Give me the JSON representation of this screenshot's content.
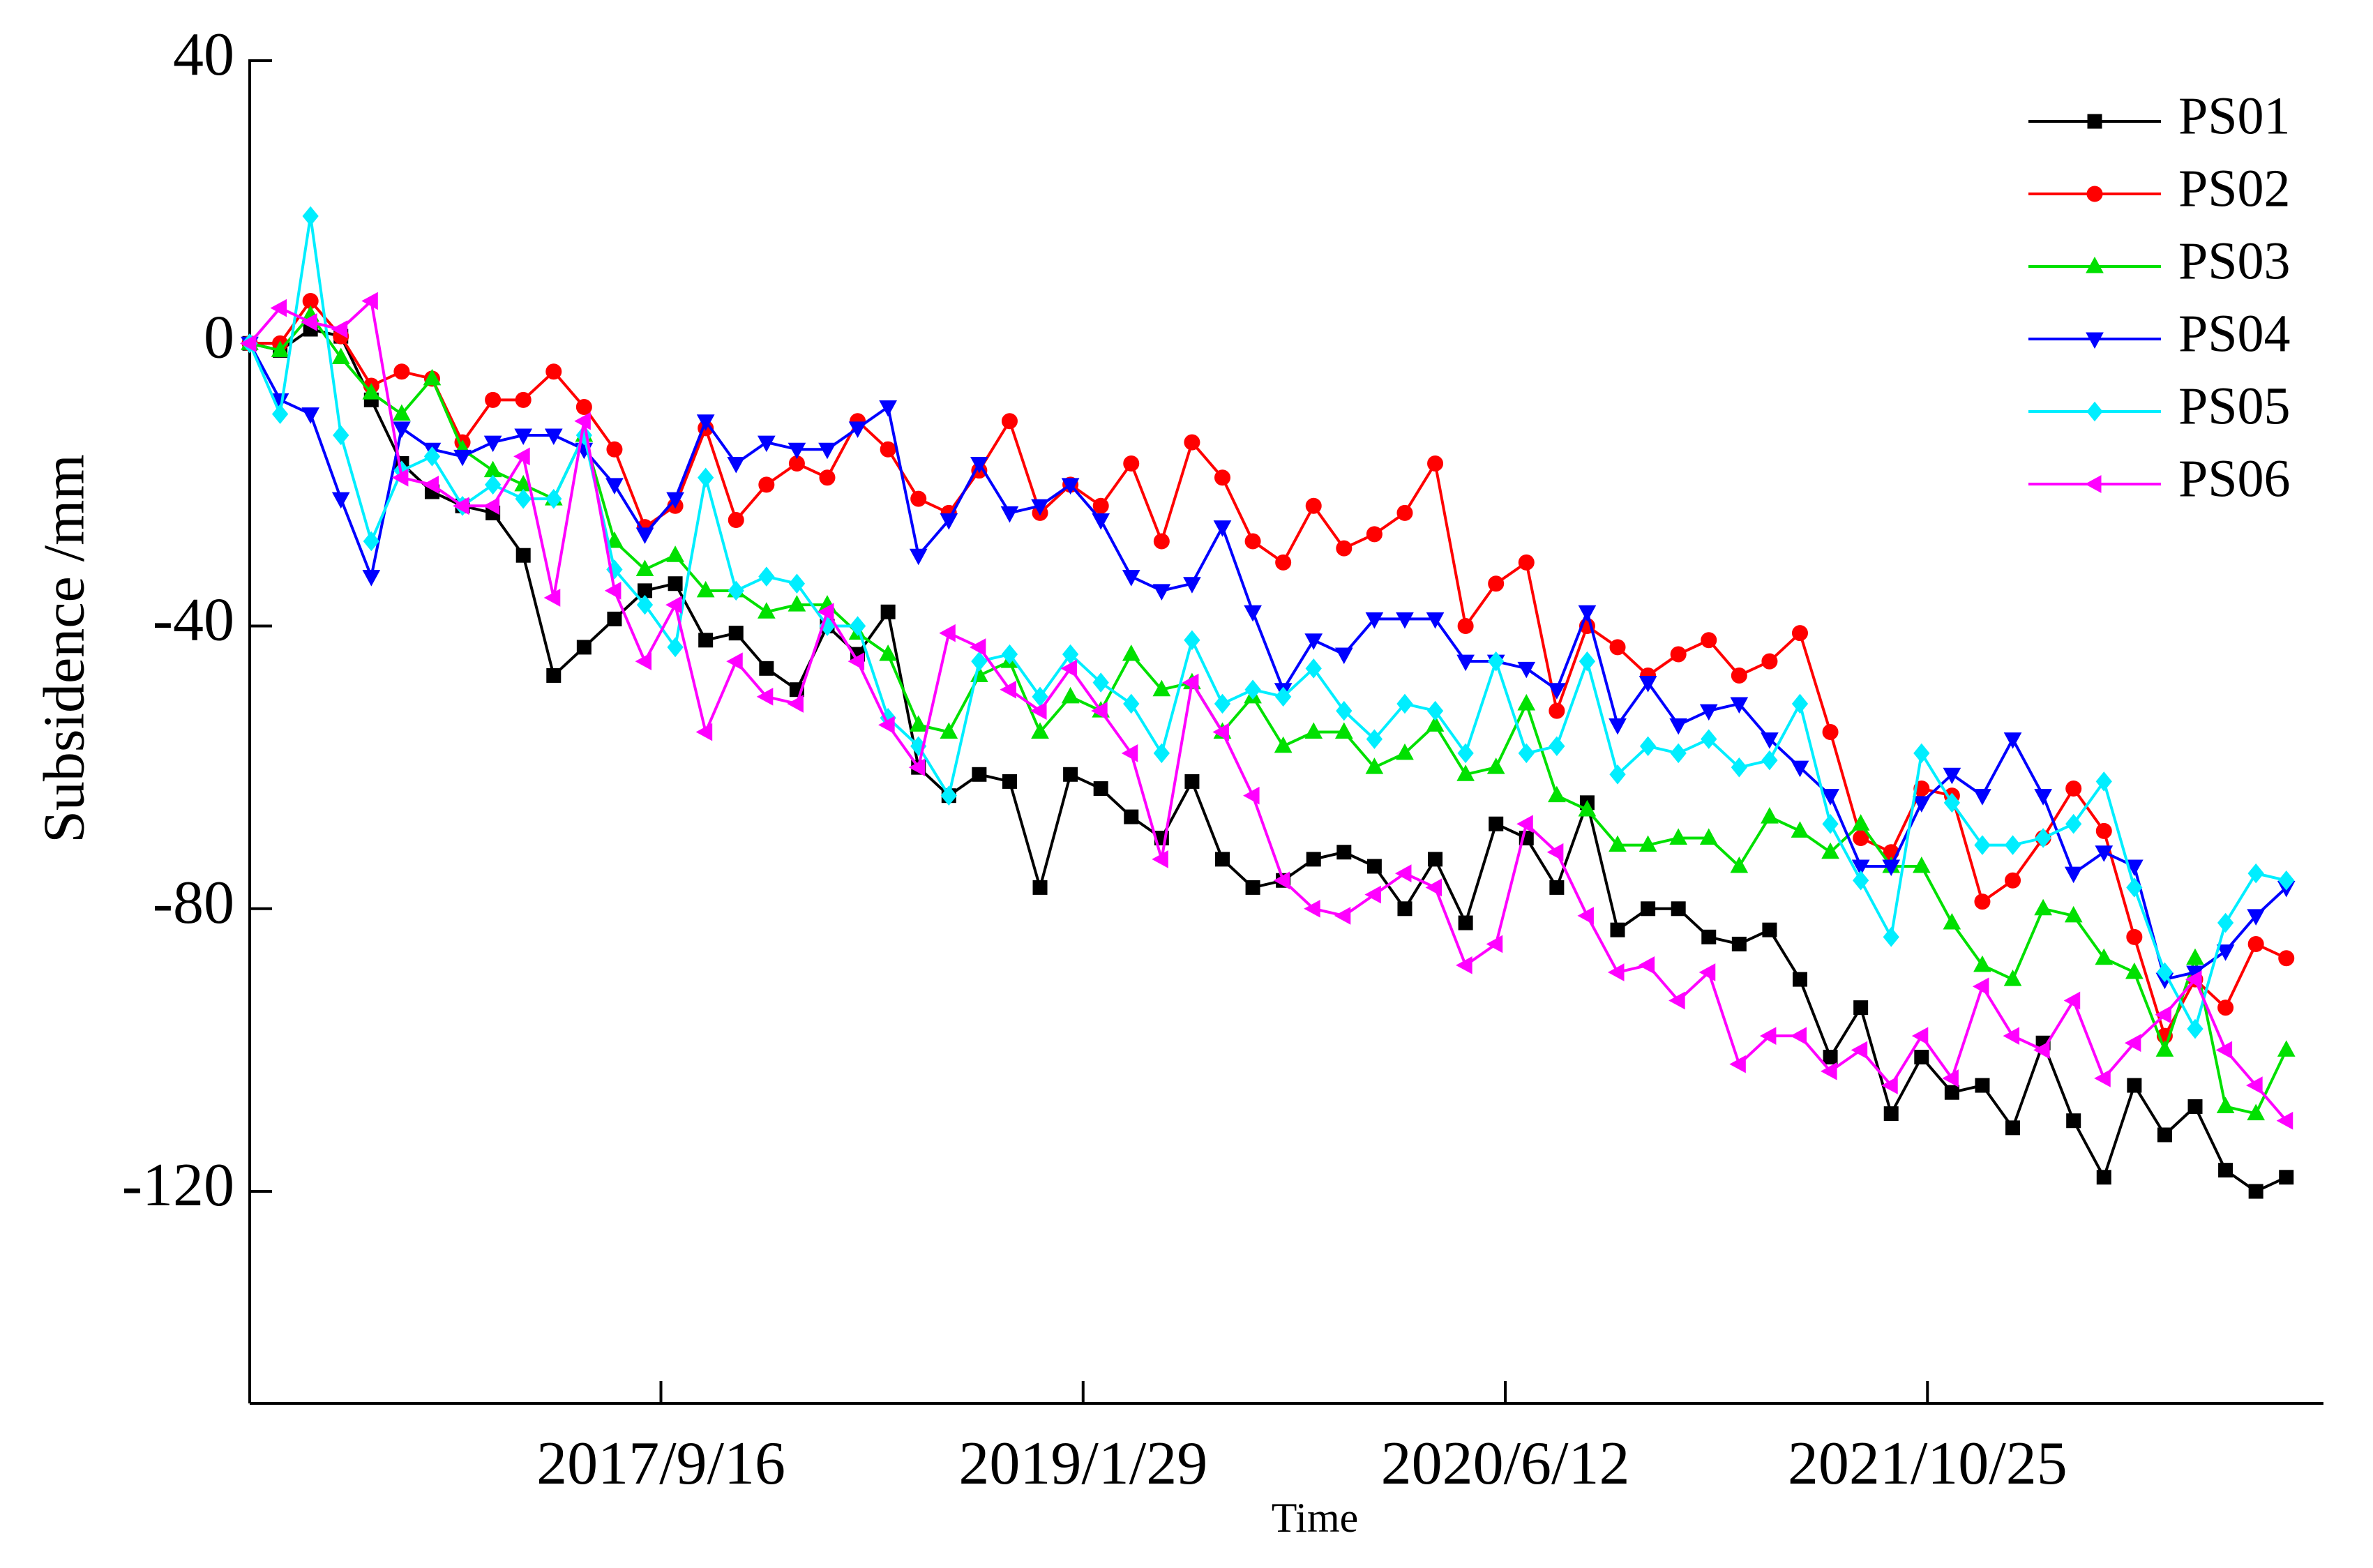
{
  "chart_data": {
    "type": "line",
    "xlabel": "Time",
    "ylabel": "Subsidence /mm",
    "x": [
      "2016/5/17",
      "2016/6/22",
      "2016/7/28",
      "2016/9/2",
      "2016/10/8",
      "2016/11/13",
      "2016/12/19",
      "2017/1/24",
      "2017/3/1",
      "2017/4/6",
      "2017/5/12",
      "2017/6/17",
      "2017/7/23",
      "2017/8/28",
      "2017/10/3",
      "2017/11/8",
      "2017/12/14",
      "2018/1/19",
      "2018/2/24",
      "2018/4/1",
      "2018/5/7",
      "2018/6/12",
      "2018/7/18",
      "2018/8/23",
      "2018/9/28",
      "2018/11/3",
      "2018/12/9",
      "2019/1/14",
      "2019/2/19",
      "2019/3/27",
      "2019/5/2",
      "2019/6/7",
      "2019/7/13",
      "2019/8/18",
      "2019/9/23",
      "2019/10/29",
      "2019/12/4",
      "2020/1/9",
      "2020/2/14",
      "2020/3/21",
      "2020/4/26",
      "2020/6/1",
      "2020/7/7",
      "2020/8/12",
      "2020/9/17",
      "2020/10/23",
      "2020/11/28",
      "2021/1/3",
      "2021/2/8",
      "2021/3/16",
      "2021/4/21",
      "2021/5/27",
      "2021/7/2",
      "2021/8/7",
      "2021/9/12",
      "2021/10/18",
      "2021/11/23",
      "2021/12/29",
      "2022/2/3",
      "2022/3/11",
      "2022/4/16",
      "2022/5/22",
      "2022/6/27",
      "2022/8/2",
      "2022/9/7",
      "2022/10/13",
      "2022/11/18",
      "2022/12/24"
    ],
    "series": [
      {
        "name": "PS01",
        "color": "#000000",
        "marker": "square",
        "values": [
          0,
          -1,
          2,
          1,
          -8,
          -17,
          -21,
          -23,
          -24,
          -30,
          -47,
          -43,
          -39,
          -35,
          -34,
          -42,
          -41,
          -46,
          -49,
          -40,
          -44,
          -38,
          -60,
          -64,
          -61,
          -62,
          -77,
          -61,
          -63,
          -67,
          -70,
          -62,
          -73,
          -77,
          -76,
          -73,
          -72,
          -74,
          -80,
          -73,
          -82,
          -68,
          -70,
          -77,
          -65,
          -83,
          -80,
          -80,
          -84,
          -85,
          -83,
          -90,
          -101,
          -94,
          -109,
          -101,
          -106,
          -105,
          -111,
          -99,
          -110,
          -118,
          -105,
          -112,
          -108,
          -117,
          -120,
          -118
        ]
      },
      {
        "name": "PS02",
        "color": "#ff0000",
        "marker": "circle",
        "values": [
          0,
          0,
          6,
          1,
          -6,
          -4,
          -5,
          -14,
          -8,
          -8,
          -4,
          -9,
          -15,
          -26,
          -23,
          -12,
          -25,
          -20,
          -17,
          -19,
          -11,
          -15,
          -22,
          -24,
          -18,
          -11,
          -24,
          -20,
          -23,
          -17,
          -28,
          -14,
          -19,
          -28,
          -31,
          -23,
          -29,
          -27,
          -24,
          -17,
          -40,
          -34,
          -31,
          -52,
          -40,
          -43,
          -47,
          -44,
          -42,
          -47,
          -45,
          -41,
          -55,
          -70,
          -72,
          -63,
          -64,
          -79,
          -76,
          -70,
          -63,
          -69,
          -84,
          -98,
          -90,
          -94,
          -85,
          -87
        ]
      },
      {
        "name": "PS03",
        "color": "#00e000",
        "marker": "triangle-up",
        "values": [
          0,
          -1,
          4,
          -2,
          -7,
          -10,
          -5,
          -15,
          -18,
          -20,
          -22,
          -13,
          -28,
          -32,
          -30,
          -35,
          -35,
          -38,
          -37,
          -37,
          -41,
          -44,
          -54,
          -55,
          -47,
          -45,
          -55,
          -50,
          -52,
          -44,
          -49,
          -48,
          -55,
          -50,
          -57,
          -55,
          -55,
          -60,
          -58,
          -54,
          -61,
          -60,
          -51,
          -64,
          -66,
          -71,
          -71,
          -70,
          -70,
          -74,
          -67,
          -69,
          -72,
          -68,
          -74,
          -74,
          -82,
          -88,
          -90,
          -80,
          -81,
          -87,
          -89,
          -100,
          -87,
          -108,
          -109,
          -100
        ]
      },
      {
        "name": "PS04",
        "color": "#0000ff",
        "marker": "triangle-down",
        "values": [
          0,
          -8,
          -10,
          -22,
          -33,
          -12,
          -15,
          -16,
          -14,
          -13,
          -13,
          -15,
          -20,
          -27,
          -22,
          -11,
          -17,
          -14,
          -15,
          -15,
          -12,
          -9,
          -30,
          -25,
          -17,
          -24,
          -23,
          -20,
          -25,
          -33,
          -35,
          -34,
          -26,
          -38,
          -49,
          -42,
          -44,
          -39,
          -39,
          -39,
          -45,
          -45,
          -46,
          -49,
          -38,
          -54,
          -48,
          -54,
          -52,
          -51,
          -56,
          -60,
          -64,
          -74,
          -74,
          -65,
          -61,
          -64,
          -56,
          -64,
          -75,
          -72,
          -74,
          -90,
          -89,
          -86,
          -81,
          -77
        ]
      },
      {
        "name": "PS05",
        "color": "#00eeff",
        "marker": "diamond",
        "values": [
          0,
          -10,
          18,
          -13,
          -28,
          -18,
          -16,
          -23,
          -20,
          -22,
          -22,
          -13,
          -32,
          -37,
          -43,
          -19,
          -35,
          -33,
          -34,
          -40,
          -40,
          -53,
          -57,
          -64,
          -45,
          -44,
          -50,
          -44,
          -48,
          -51,
          -58,
          -42,
          -51,
          -49,
          -50,
          -46,
          -52,
          -56,
          -51,
          -52,
          -58,
          -45,
          -58,
          -57,
          -45,
          -61,
          -57,
          -58,
          -56,
          -60,
          -59,
          -51,
          -68,
          -76,
          -84,
          -58,
          -65,
          -71,
          -71,
          -70,
          -68,
          -62,
          -77,
          -89,
          -97,
          -82,
          -75,
          -76
        ]
      },
      {
        "name": "PS06",
        "color": "#ff00ff",
        "marker": "triangle-left",
        "values": [
          0,
          5,
          3,
          2,
          6,
          -19,
          -20,
          -23,
          -23,
          -16,
          -36,
          -11,
          -35,
          -45,
          -37,
          -55,
          -45,
          -50,
          -51,
          -38,
          -45,
          -54,
          -60,
          -41,
          -43,
          -49,
          -52,
          -46,
          -52,
          -58,
          -73,
          -48,
          -55,
          -64,
          -76,
          -80,
          -81,
          -78,
          -75,
          -77,
          -88,
          -85,
          -68,
          -72,
          -81,
          -89,
          -88,
          -93,
          -89,
          -102,
          -98,
          -98,
          -103,
          -100,
          -105,
          -98,
          -104,
          -91,
          -98,
          -100,
          -93,
          -104,
          -99,
          -95,
          -90,
          -100,
          -105,
          -110
        ]
      }
    ],
    "xlim": [
      "2016/5/17",
      "2023/2/6"
    ],
    "xticks": [
      "2017/9/16",
      "2019/1/29",
      "2020/6/12",
      "2021/10/25"
    ],
    "ylim": [
      -150,
      40
    ],
    "yticks": [
      -120,
      -80,
      -40,
      0,
      40
    ],
    "grid": false,
    "legend": "upper right"
  }
}
